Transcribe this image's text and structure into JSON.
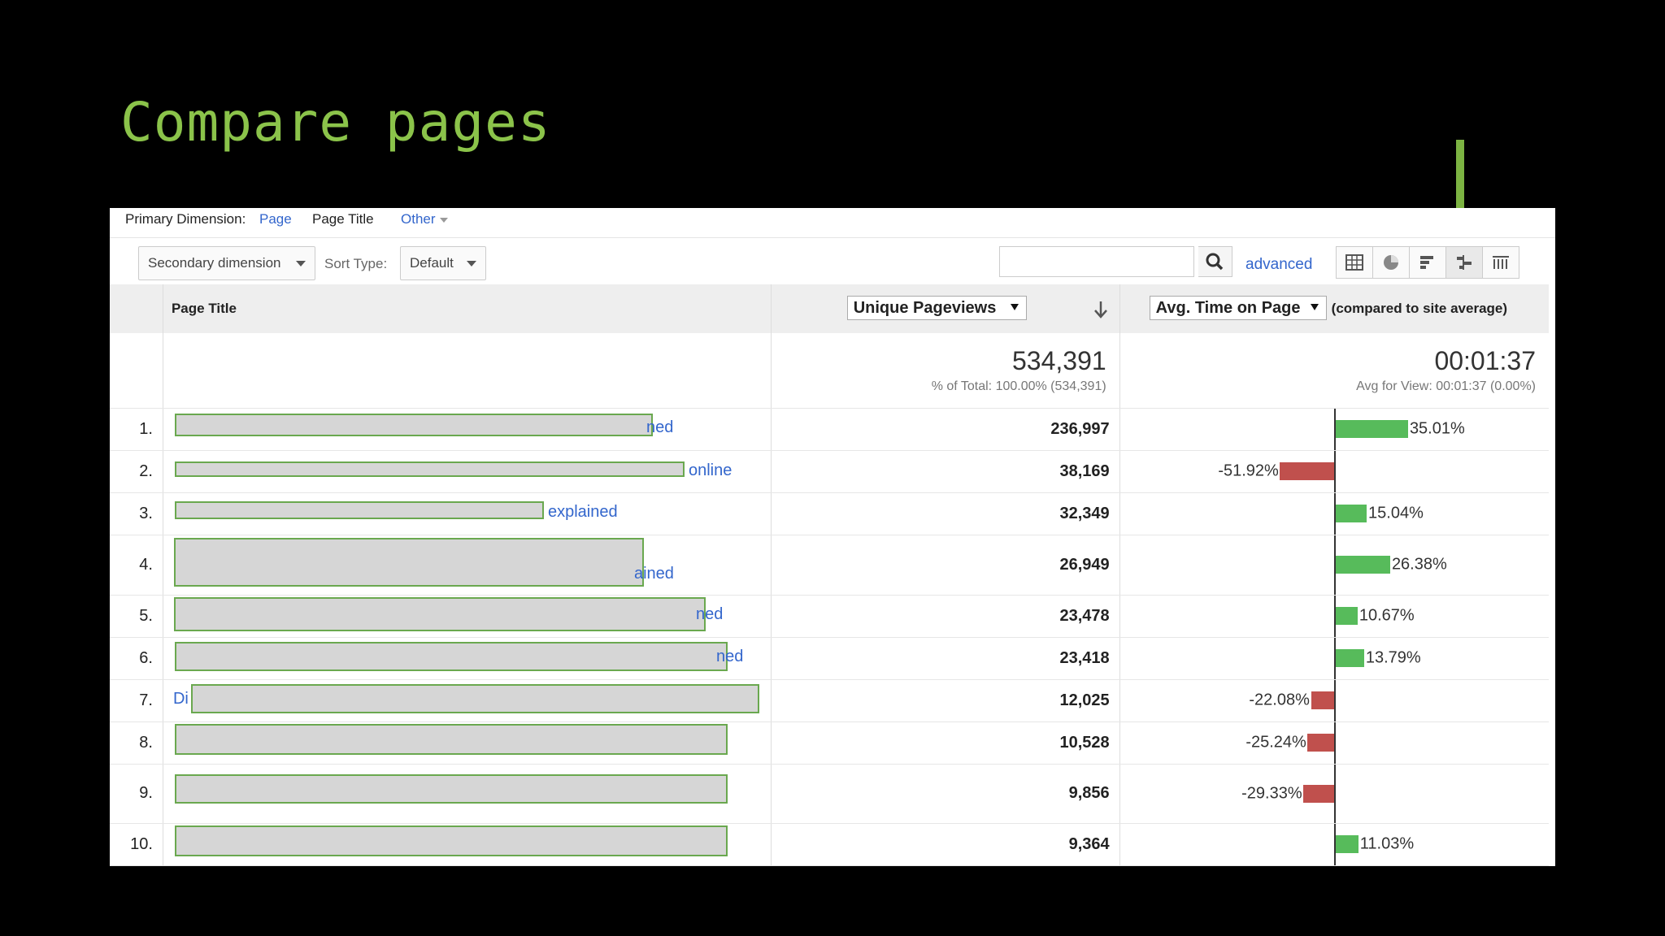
{
  "slide_title": "Compare pages",
  "dimension_bar": {
    "label": "Primary Dimension:",
    "options": [
      "Page",
      "Page Title",
      "Other"
    ]
  },
  "toolbar": {
    "secondary_dimension": "Secondary dimension",
    "sort_type_label": "Sort Type:",
    "sort_type_value": "Default",
    "search_value": "",
    "advanced_link": "advanced",
    "view_icons": [
      "table-view-icon",
      "pie-view-icon",
      "performance-view-icon",
      "comparison-view-icon",
      "pivot-view-icon"
    ]
  },
  "table": {
    "header_page_title": "Page Title",
    "metric_select": "Unique Pageviews",
    "compare_select": "Avg. Time on Page",
    "compare_note": "(compared to site average)",
    "totals": {
      "metric_total": "534,391",
      "metric_sub": "% of Total: 100.00% (534,391)",
      "compare_total": "00:01:37",
      "compare_sub": "Avg for View: 00:01:37 (0.00%)"
    },
    "rows": [
      {
        "rank": "1.",
        "title_visible": "ned",
        "value": "236,997",
        "pct": "35.01%",
        "pct_value": 35.01
      },
      {
        "rank": "2.",
        "title_visible": "online",
        "value": "38,169",
        "pct": "-51.92%",
        "pct_value": -51.92
      },
      {
        "rank": "3.",
        "title_visible": "explained",
        "value": "32,349",
        "pct": "15.04%",
        "pct_value": 15.04
      },
      {
        "rank": "4.",
        "title_visible": "ained",
        "value": "26,949",
        "pct": "26.38%",
        "pct_value": 26.38
      },
      {
        "rank": "5.",
        "title_visible": "ned",
        "value": "23,478",
        "pct": "10.67%",
        "pct_value": 10.67
      },
      {
        "rank": "6.",
        "title_visible": "ned",
        "value": "23,418",
        "pct": "13.79%",
        "pct_value": 13.79
      },
      {
        "rank": "7.",
        "title_visible": "Di",
        "value": "12,025",
        "pct": "-22.08%",
        "pct_value": -22.08
      },
      {
        "rank": "8.",
        "title_visible": "",
        "value": "10,528",
        "pct": "-25.24%",
        "pct_value": -25.24
      },
      {
        "rank": "9.",
        "title_visible": "",
        "value": "9,856",
        "pct": "-29.33%",
        "pct_value": -29.33
      },
      {
        "rank": "10.",
        "title_visible": "",
        "value": "9,364",
        "pct": "11.03%",
        "pct_value": 11.03
      }
    ]
  },
  "colors": {
    "positive": "#57bb5b",
    "negative": "#c0504d",
    "link": "#3366cc",
    "title": "#8bc34a",
    "arrow": "#7cb342"
  }
}
